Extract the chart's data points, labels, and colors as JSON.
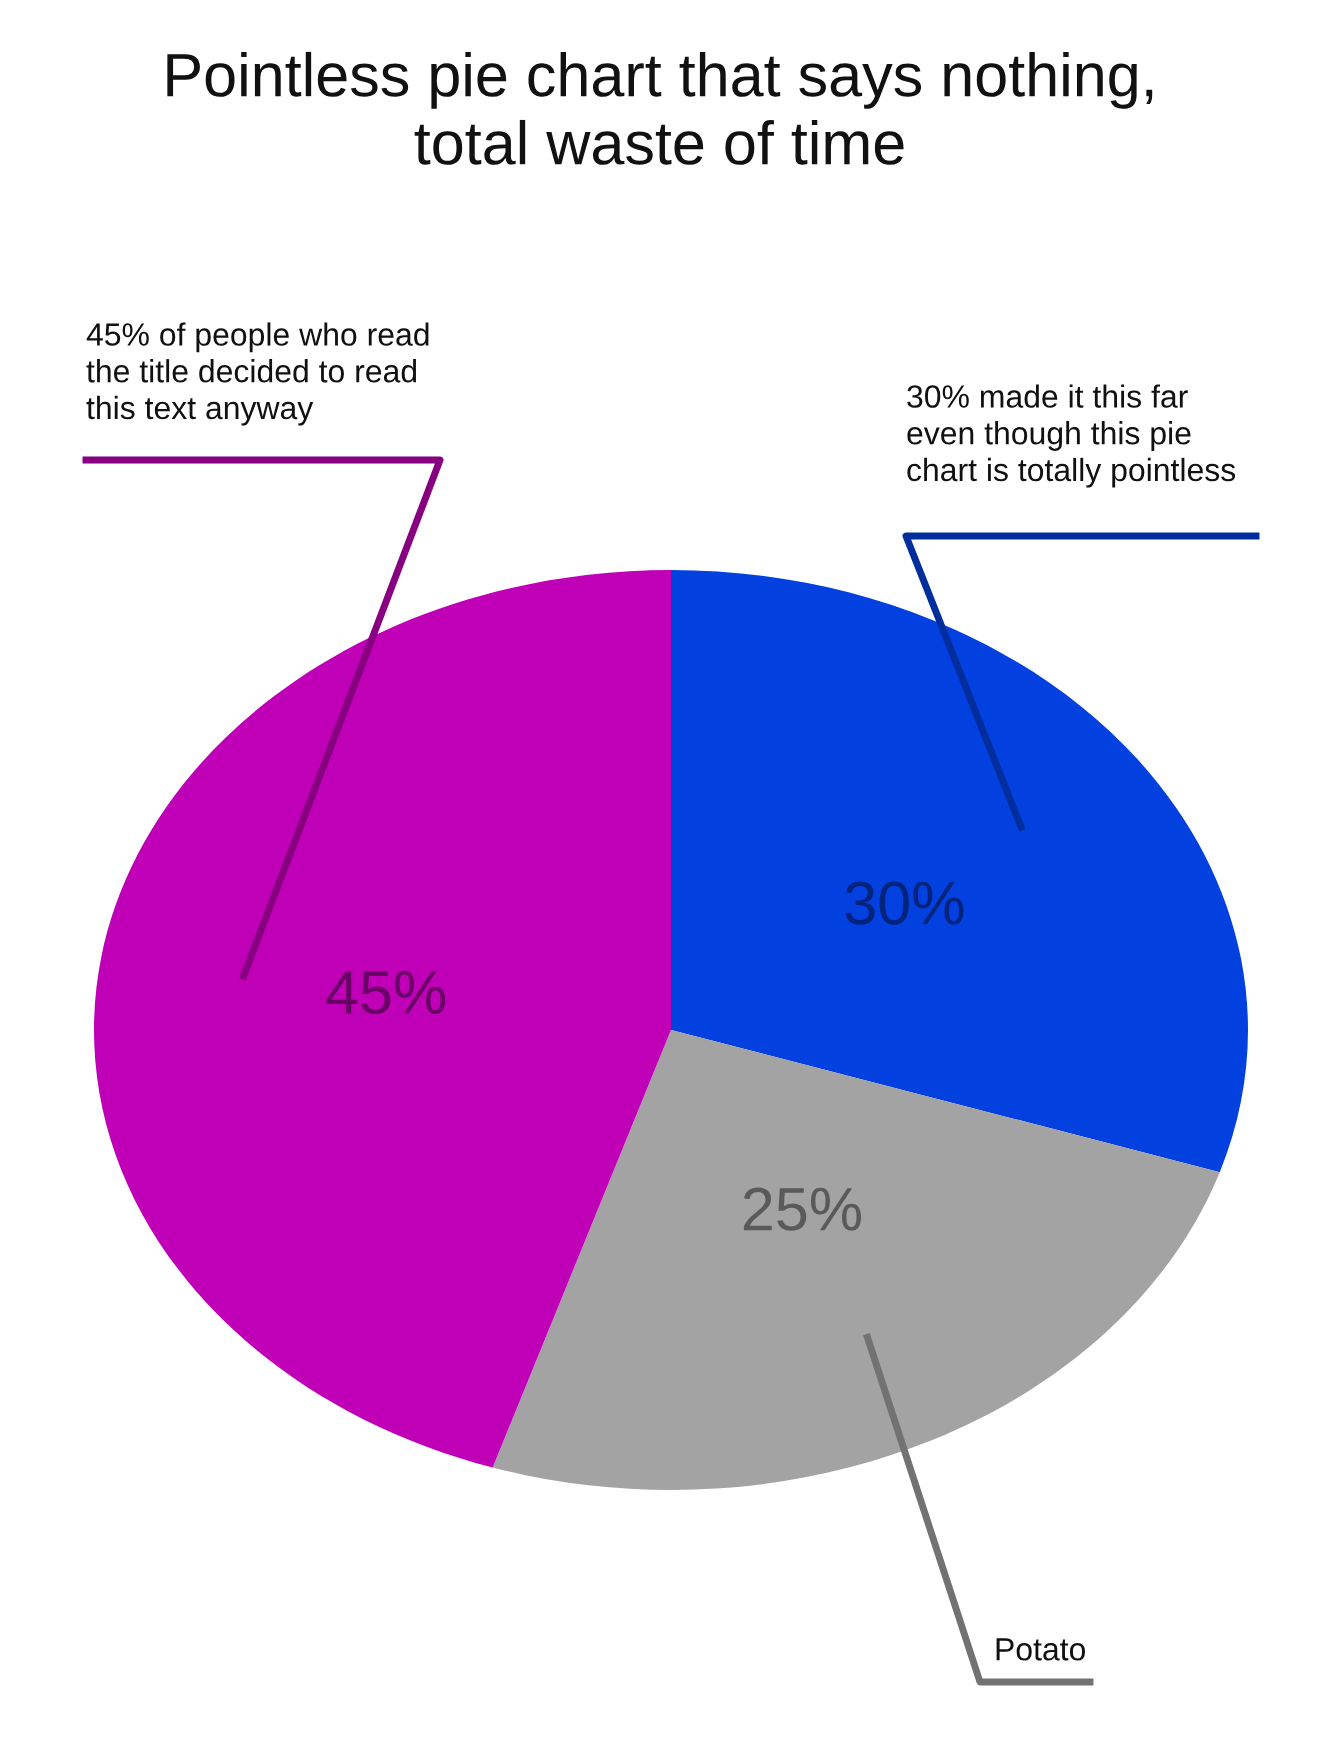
{
  "chart_data": {
    "type": "pie",
    "title": "Pointless pie chart that says nothing,\ntotal waste of time",
    "categories": [
      "30% made it this far\neven though this pie\nchart is totally pointless",
      "Potato",
      "45% of people who read\nthe title decided to read\nthis text anyway"
    ],
    "values": [
      30,
      25,
      45
    ],
    "colors": [
      "#0340e0",
      "#a3a3a3",
      "#bf00b7"
    ],
    "value_labels": [
      "30%",
      "25%",
      "45%"
    ],
    "legend": false
  }
}
